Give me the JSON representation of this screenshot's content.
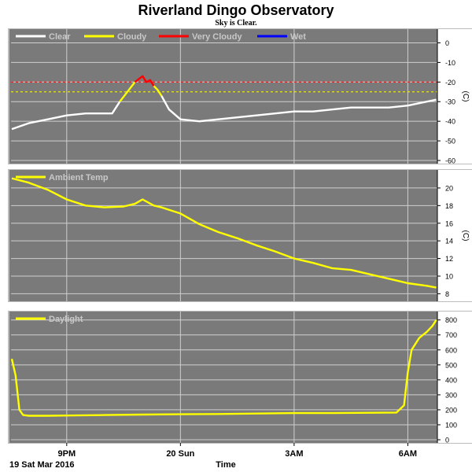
{
  "title": "Riverland Dingo Observatory",
  "subtitle": "Sky is Clear.",
  "footer": {
    "date_label": "19 Sat Mar 2016",
    "x_title": "Time"
  },
  "x_axis": {
    "tick_labels": [
      "9PM",
      "20 Sun",
      "3AM",
      "6AM"
    ]
  },
  "colors": {
    "panel_bg": "#7a7a7a",
    "grid": "#cfcfcf",
    "clear": "#ffffff",
    "cloudy": "#ffff00",
    "very_cloudy": "#ff0000",
    "wet": "#0000ff",
    "temp": "#ffff00",
    "daylight": "#ffff00"
  },
  "chart_data": [
    {
      "type": "line",
      "name": "sky",
      "legend": [
        "Clear",
        "Cloudy",
        "Very Cloudy",
        "Wet"
      ],
      "ylabel": "(C)",
      "ylim": [
        -60,
        5
      ],
      "yticks": [
        0,
        -10,
        -20,
        -30,
        -40,
        -50,
        -60
      ],
      "threshold_lines": [
        -20,
        -25
      ],
      "xlim": [
        19.53,
        30.78
      ],
      "x_unit": "hours since 00:00 19 Mar 2016",
      "series": [
        {
          "name": "Clear",
          "x": [
            19.55,
            20.0,
            20.5,
            21.0,
            21.5,
            22.0,
            22.2,
            22.4
          ],
          "y": [
            -44,
            -41,
            -39,
            -37,
            -36,
            -36,
            -36,
            -30
          ]
        },
        {
          "name": "Cloudy",
          "x": [
            22.4,
            22.6,
            22.8
          ],
          "y": [
            -30,
            -25,
            -20
          ]
        },
        {
          "name": "Very Cloudy",
          "x": [
            22.8,
            23.0,
            23.1,
            23.2,
            23.3
          ],
          "y": [
            -20,
            -17,
            -20,
            -19,
            -22
          ]
        },
        {
          "name": "Cloudy",
          "x": [
            23.3,
            23.4,
            23.5
          ],
          "y": [
            -22,
            -24,
            -27
          ]
        },
        {
          "name": "Clear",
          "x": [
            23.5,
            23.7,
            24.0,
            24.5,
            25.0,
            25.5,
            26.0,
            26.5,
            27.0,
            27.5,
            28.0,
            28.5,
            29.0,
            29.5,
            30.0,
            30.5,
            30.75
          ],
          "y": [
            -27,
            -34,
            -39,
            -40,
            -39,
            -38,
            -37,
            -36,
            -35,
            -35,
            -34,
            -33,
            -33,
            -33,
            -32,
            -30,
            -29
          ]
        }
      ]
    },
    {
      "type": "line",
      "name": "ambient",
      "legend": [
        "Ambient Temp"
      ],
      "ylabel": "(C)",
      "ylim": [
        7.5,
        21.6
      ],
      "yticks": [
        8,
        10,
        12,
        14,
        16,
        18,
        20
      ],
      "xlim": [
        19.53,
        30.78
      ],
      "series": [
        {
          "name": "Ambient Temp",
          "x": [
            19.55,
            20.0,
            20.5,
            21.0,
            21.5,
            22.0,
            22.5,
            22.8,
            23.0,
            23.3,
            23.5,
            24.0,
            24.5,
            25.0,
            25.5,
            26.0,
            26.5,
            27.0,
            27.5,
            28.0,
            28.5,
            29.0,
            29.5,
            30.0,
            30.5,
            30.75
          ],
          "y": [
            21.1,
            20.6,
            19.8,
            18.7,
            18.0,
            17.8,
            17.9,
            18.2,
            18.7,
            18.0,
            17.8,
            17.1,
            15.9,
            15.0,
            14.3,
            13.5,
            12.8,
            12.0,
            11.5,
            10.9,
            10.7,
            10.2,
            9.7,
            9.2,
            8.9,
            8.7
          ]
        }
      ]
    },
    {
      "type": "line",
      "name": "daylight",
      "legend": [
        "Daylight"
      ],
      "ylim": [
        0,
        830
      ],
      "yticks": [
        0,
        100,
        200,
        300,
        400,
        500,
        600,
        700,
        800
      ],
      "xlim": [
        19.53,
        30.78
      ],
      "series": [
        {
          "name": "Daylight",
          "x": [
            19.55,
            19.65,
            19.75,
            19.85,
            20.0,
            20.5,
            21.0,
            22.0,
            23.0,
            24.0,
            25.0,
            26.0,
            27.0,
            28.0,
            29.0,
            29.7,
            29.9,
            30.0,
            30.1,
            30.3,
            30.5,
            30.65,
            30.75
          ],
          "y": [
            540,
            430,
            200,
            165,
            160,
            160,
            162,
            165,
            168,
            170,
            172,
            175,
            178,
            178,
            180,
            182,
            230,
            450,
            600,
            680,
            720,
            760,
            800
          ]
        }
      ]
    }
  ]
}
